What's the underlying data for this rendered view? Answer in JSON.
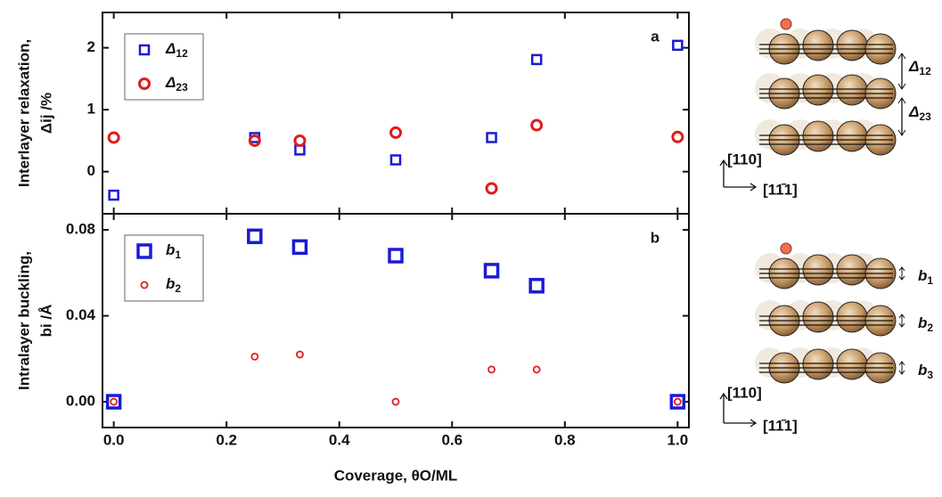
{
  "chart_data": [
    {
      "type": "scatter",
      "panel_label": "a",
      "ylabel": [
        "Interlayer relaxation,",
        "Δij /%"
      ],
      "xlim": [
        -0.02,
        1.02
      ],
      "xticks": [
        {
          "value": 0,
          "label": "0.0"
        },
        0.2,
        0.4,
        0.6,
        0.8,
        {
          "value": 1,
          "label": "1.0"
        }
      ],
      "ylim": [
        -0.68,
        2.57
      ],
      "yticks": [
        0,
        1,
        2
      ],
      "x": [
        0,
        0.25,
        0.33,
        0.5,
        0.67,
        0.75,
        1
      ],
      "series": [
        {
          "name": "Δ12",
          "color": "#1a1ad6",
          "marker": "square",
          "marker_size": 10,
          "values": [
            -0.38,
            0.55,
            0.35,
            0.19,
            0.55,
            1.81,
            2.04
          ]
        },
        {
          "name": "Δ23",
          "color": "#e11b1b",
          "marker": "circle",
          "marker_size": 11,
          "values": [
            0.55,
            0.5,
            0.5,
            0.63,
            -0.27,
            0.75,
            0.56
          ]
        }
      ]
    },
    {
      "type": "scatter",
      "panel_label": "b",
      "ylabel": [
        "Intralayer buckling,",
        "bi /Å"
      ],
      "xlabel": "Coverage, θO/ML",
      "xlim": [
        -0.02,
        1.02
      ],
      "xticks": [
        {
          "value": 0,
          "label": "0.0"
        },
        0.2,
        0.4,
        0.6,
        0.8,
        {
          "value": 1,
          "label": "1.0"
        }
      ],
      "ylim": [
        -0.012,
        0.0875
      ],
      "yticks": [
        {
          "value": 0,
          "label": "0.00"
        },
        0.04,
        0.08
      ],
      "x": [
        0,
        0.25,
        0.33,
        0.5,
        0.67,
        0.75,
        1
      ],
      "series": [
        {
          "name": "b1",
          "color": "#1a1ad6",
          "marker": "square",
          "marker_size": 14,
          "values": [
            0,
            0.077,
            0.072,
            0.068,
            0.061,
            0.054,
            0
          ]
        },
        {
          "name": "b2",
          "color": "#e11b1b",
          "marker": "circle",
          "marker_size": 7,
          "values": [
            0,
            0.021,
            0.022,
            0,
            0.015,
            0.015,
            0
          ]
        }
      ]
    }
  ],
  "diagram_labels": {
    "top": [
      "Δ12",
      "Δ23"
    ],
    "bottom": [
      "b1",
      "b2",
      "b3"
    ],
    "axis_up": "[110]",
    "axis_right": "[11̄1]"
  }
}
